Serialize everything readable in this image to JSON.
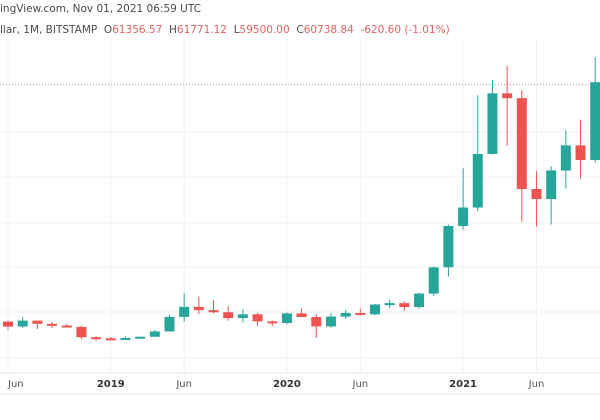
{
  "header": {
    "source_line": "ingView.com, Nov 01, 2021 06:59 UTC",
    "symbol_line": "llar, 1M, BITSTAMP",
    "open_label": "O",
    "open": "61356.57",
    "high_label": "H",
    "high": "61771.12",
    "low_label": "L",
    "low": "59500.00",
    "close_label": "C",
    "close": "60738.84",
    "change": "-620.60 (-1.01%)"
  },
  "colors": {
    "up": "#26a69a",
    "down": "#ef5350",
    "grid": "#f0f0f0",
    "last_price_line": "#999999"
  },
  "chart_data": {
    "type": "candlestick",
    "interval": "1M",
    "y_scale": "linear",
    "grid": true,
    "last_price": 60738.84,
    "x_ticks": [
      "Jun",
      "2019",
      "Jun",
      "2020",
      "Jun",
      "2021",
      "Jun"
    ],
    "categories": [
      "2018-06",
      "2018-07",
      "2018-08",
      "2018-09",
      "2018-10",
      "2018-11",
      "2018-12",
      "2019-01",
      "2019-02",
      "2019-03",
      "2019-04",
      "2019-05",
      "2019-06",
      "2019-07",
      "2019-08",
      "2019-09",
      "2019-10",
      "2019-11",
      "2019-12",
      "2020-01",
      "2020-02",
      "2020-03",
      "2020-04",
      "2020-05",
      "2020-06",
      "2020-07",
      "2020-08",
      "2020-09",
      "2020-10",
      "2020-11",
      "2020-12",
      "2021-01",
      "2021-02",
      "2021-03",
      "2021-04",
      "2021-05",
      "2021-06",
      "2021-07",
      "2021-08",
      "2021-09",
      "2021-10"
    ],
    "ohlc": [
      [
        7500,
        7760,
        5750,
        6390
      ],
      [
        6390,
        8500,
        6070,
        7730
      ],
      [
        7730,
        7750,
        5880,
        7010
      ],
      [
        7010,
        7400,
        6100,
        6620
      ],
      [
        6620,
        7000,
        6200,
        6300
      ],
      [
        6300,
        6550,
        3500,
        4000
      ],
      [
        4000,
        4250,
        3200,
        3740
      ],
      [
        3740,
        4070,
        3350,
        3440
      ],
      [
        3440,
        4200,
        3400,
        3820
      ],
      [
        3820,
        4150,
        3680,
        4100
      ],
      [
        4100,
        5600,
        4100,
        5300
      ],
      [
        5300,
        9100,
        5330,
        8560
      ],
      [
        8560,
        13880,
        7500,
        10820
      ],
      [
        10820,
        13150,
        9100,
        10090
      ],
      [
        10090,
        12330,
        9350,
        9600
      ],
      [
        9600,
        10950,
        7730,
        8300
      ],
      [
        8300,
        10370,
        7300,
        9150
      ],
      [
        9150,
        9500,
        6520,
        7560
      ],
      [
        7560,
        7750,
        6430,
        7190
      ],
      [
        7190,
        9580,
        6870,
        9350
      ],
      [
        9350,
        10500,
        8450,
        8540
      ],
      [
        8540,
        9200,
        3850,
        6420
      ],
      [
        6420,
        9460,
        6150,
        8630
      ],
      [
        8630,
        10060,
        8100,
        9450
      ],
      [
        9450,
        10400,
        8900,
        9140
      ],
      [
        9140,
        11450,
        8970,
        11350
      ],
      [
        11350,
        12470,
        10530,
        11660
      ],
      [
        11660,
        12080,
        9880,
        10780
      ],
      [
        10780,
        14000,
        10380,
        13800
      ],
      [
        13800,
        19900,
        13200,
        19700
      ],
      [
        19700,
        29300,
        17600,
        28990
      ],
      [
        28990,
        41950,
        28150,
        33140
      ],
      [
        33140,
        58350,
        32300,
        45180
      ],
      [
        45180,
        61780,
        45000,
        58800
      ],
      [
        58800,
        64900,
        47000,
        57720
      ],
      [
        57720,
        59500,
        30000,
        37300
      ],
      [
        37300,
        41300,
        28800,
        35040
      ],
      [
        35040,
        42400,
        29300,
        41460
      ],
      [
        41460,
        50500,
        37400,
        47100
      ],
      [
        47100,
        52900,
        39600,
        43820
      ],
      [
        43820,
        66960,
        43300,
        61300
      ]
    ]
  }
}
